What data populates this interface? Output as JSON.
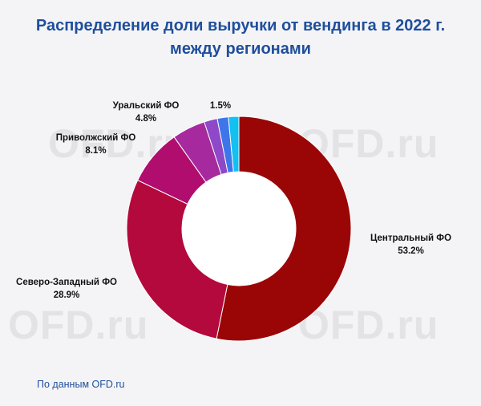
{
  "title_line1": "Распределение доли выручки от вендинга в 2022 г.",
  "title_line2": "между регионами",
  "source": "По данным OFD.ru",
  "watermark": "OFD.ru",
  "chart_data": {
    "type": "pie",
    "variant": "donut",
    "title": "Распределение доли выручки от вендинга в 2022 г. между регионами",
    "unit": "%",
    "slices": [
      {
        "name": "Центральный ФО",
        "label": "53.2%",
        "value": 53.2,
        "color": "#9a0606"
      },
      {
        "name": "Северо-Западный ФО",
        "label": "28.9%",
        "value": 28.9,
        "color": "#b3093d"
      },
      {
        "name": "Приволжский ФО",
        "label": "8.1%",
        "value": 8.1,
        "color": "#b10d6f"
      },
      {
        "name": "Уральский ФО",
        "label": "4.8%",
        "value": 4.8,
        "color": "#a62a9e"
      },
      {
        "name": "",
        "label": "",
        "value": 1.9,
        "color": "#8e48c8"
      },
      {
        "name": "",
        "label": "",
        "value": 1.6,
        "color": "#3e76ea"
      },
      {
        "name": "",
        "label": "1.5%",
        "value": 1.5,
        "color": "#12c0f2"
      }
    ]
  }
}
